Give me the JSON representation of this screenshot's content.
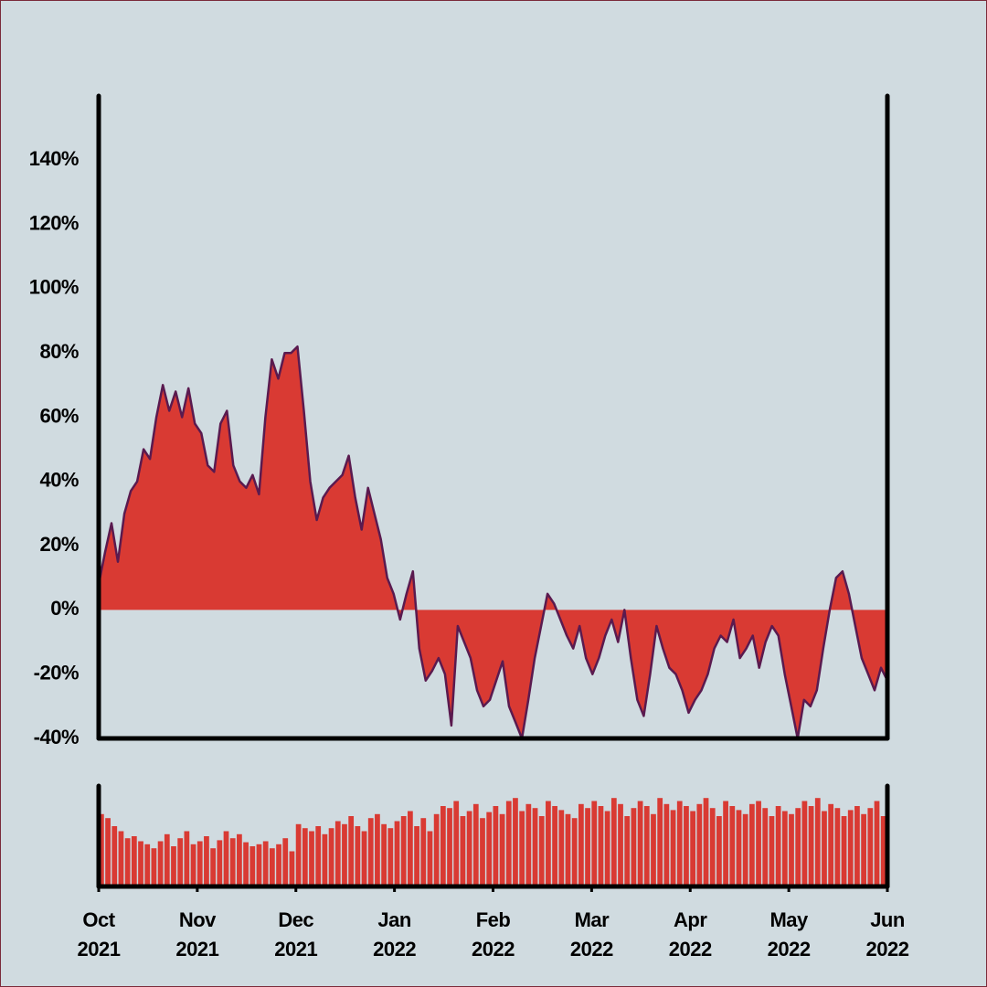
{
  "chart_data": [
    {
      "type": "area",
      "xlim": [
        "2021-10",
        "2022-06"
      ],
      "ylim": [
        -40,
        160
      ],
      "yticks": [
        {
          "value": -40,
          "label": "-40%"
        },
        {
          "value": -20,
          "label": "-20%"
        },
        {
          "value": 0,
          "label": "0%"
        },
        {
          "value": 20,
          "label": "20%"
        },
        {
          "value": 40,
          "label": "40%"
        },
        {
          "value": 60,
          "label": "60%"
        },
        {
          "value": 80,
          "label": "80%"
        },
        {
          "value": 100,
          "label": "100%"
        },
        {
          "value": 120,
          "label": "120%"
        },
        {
          "value": 140,
          "label": "140%"
        }
      ],
      "series": [
        {
          "color": "#d93a33",
          "line_color": "#5a1a4f",
          "values": [
            8,
            18,
            27,
            15,
            30,
            37,
            40,
            50,
            47,
            60,
            70,
            62,
            68,
            60,
            69,
            58,
            55,
            45,
            43,
            58,
            62,
            45,
            40,
            38,
            42,
            36,
            60,
            78,
            72,
            80,
            80,
            82,
            62,
            40,
            28,
            35,
            38,
            40,
            42,
            48,
            35,
            25,
            38,
            30,
            22,
            10,
            5,
            -3,
            5,
            12,
            -12,
            -22,
            -19,
            -15,
            -20,
            -36,
            -5,
            -10,
            -15,
            -25,
            -30,
            -28,
            -22,
            -16,
            -30,
            -35,
            -40,
            -28,
            -15,
            -5,
            5,
            2,
            -3,
            -8,
            -12,
            -5,
            -15,
            -20,
            -15,
            -8,
            -3,
            -10,
            0,
            -15,
            -28,
            -33,
            -20,
            -5,
            -12,
            -18,
            -20,
            -25,
            -32,
            -28,
            -25,
            -20,
            -12,
            -8,
            -10,
            -3,
            -15,
            -12,
            -8,
            -18,
            -10,
            -5,
            -8,
            -20,
            -30,
            -40,
            -28,
            -30,
            -25,
            -12,
            0,
            10,
            12,
            5,
            -5,
            -15,
            -20,
            -25,
            -18,
            -22
          ]
        }
      ]
    },
    {
      "type": "bar",
      "xlim": [
        "2021-10",
        "2022-06"
      ],
      "ylim": [
        0,
        100
      ],
      "xticks": [
        {
          "value": "2021-10",
          "label": [
            "Oct",
            "2021"
          ]
        },
        {
          "value": "2021-11",
          "label": [
            "Nov",
            "2021"
          ]
        },
        {
          "value": "2021-12",
          "label": [
            "Dec",
            "2021"
          ]
        },
        {
          "value": "2022-01",
          "label": [
            "Jan",
            "2022"
          ]
        },
        {
          "value": "2022-02",
          "label": [
            "Feb",
            "2022"
          ]
        },
        {
          "value": "2022-03",
          "label": [
            "Mar",
            "2022"
          ]
        },
        {
          "value": "2022-04",
          "label": [
            "Apr",
            "2022"
          ]
        },
        {
          "value": "2022-05",
          "label": [
            "May",
            "2022"
          ]
        },
        {
          "value": "2022-06",
          "label": [
            "Jun",
            "2022"
          ]
        }
      ],
      "series": [
        {
          "color": "#d93a33",
          "values": [
            72,
            68,
            60,
            55,
            48,
            50,
            45,
            42,
            38,
            45,
            52,
            40,
            48,
            55,
            42,
            45,
            50,
            38,
            46,
            55,
            48,
            52,
            44,
            40,
            42,
            45,
            38,
            42,
            48,
            35,
            62,
            58,
            55,
            60,
            52,
            58,
            65,
            62,
            70,
            60,
            55,
            68,
            72,
            62,
            58,
            65,
            70,
            75,
            60,
            68,
            55,
            72,
            80,
            78,
            85,
            70,
            75,
            82,
            68,
            74,
            80,
            72,
            85,
            88,
            75,
            82,
            78,
            70,
            85,
            80,
            76,
            72,
            68,
            82,
            78,
            85,
            80,
            75,
            88,
            82,
            70,
            78,
            85,
            80,
            72,
            88,
            82,
            76,
            85,
            80,
            75,
            82,
            88,
            78,
            70,
            85,
            80,
            76,
            72,
            82,
            85,
            78,
            70,
            80,
            75,
            72,
            78,
            85,
            80,
            88,
            75,
            82,
            78,
            70,
            76,
            80,
            72,
            78,
            85,
            70
          ]
        }
      ]
    }
  ]
}
